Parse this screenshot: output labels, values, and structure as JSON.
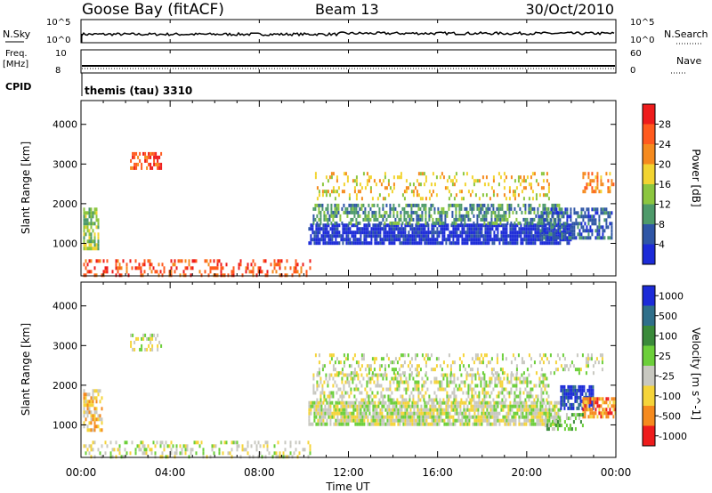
{
  "header": {
    "title": "Goose Bay (fitACF)",
    "beam": "Beam 13",
    "date": "30/Oct/2010"
  },
  "strips": {
    "nsky_label": "N.Sky",
    "nsearch_label": "N.Search",
    "nsky_ticks": [
      "10^5",
      "10^0"
    ],
    "freq_label_1": "Freq.",
    "freq_label_2": "[MHz]",
    "freq_ticks": [
      "10",
      "8"
    ],
    "nave_label": "Nave",
    "nave_ticks": [
      "60",
      "0"
    ],
    "cpid_label": "CPID",
    "cpid_text": "themis (tau) 3310"
  },
  "x_axis": {
    "label": "Time UT",
    "ticks": [
      "00:00",
      "04:00",
      "08:00",
      "12:00",
      "16:00",
      "20:00",
      "00:00"
    ],
    "tick_hours": [
      0,
      4,
      8,
      12,
      16,
      20,
      24
    ],
    "range_hours": [
      0,
      24
    ]
  },
  "chart_data": [
    {
      "type": "heatmap",
      "name": "power",
      "ylabel": "Slant Range [km]",
      "yticks": [
        1000,
        2000,
        3000,
        4000
      ],
      "ylim": [
        180,
        4600
      ],
      "xlim_hours": [
        0,
        24
      ],
      "colorbar_label": "Power [dB]",
      "colorbar_ticks": [
        "28",
        "24",
        "20",
        "16",
        "12",
        "8",
        "4"
      ],
      "colorbar_colors": [
        "#ee1c1c",
        "#ff5a1e",
        "#f58a1e",
        "#f2d431",
        "#8cc63f",
        "#4e9a6a",
        "#2f56a6",
        "#1c2bd8"
      ],
      "regions": [
        {
          "t0": 0.1,
          "t1": 10.3,
          "r0": 200,
          "r1": 600,
          "level": 1,
          "density": 0.35
        },
        {
          "t0": 0.1,
          "t1": 0.8,
          "r0": 900,
          "r1": 1900,
          "level": 4,
          "density": 0.7
        },
        {
          "t0": 2.2,
          "t1": 3.6,
          "r0": 2900,
          "r1": 3300,
          "level": 1,
          "density": 0.6
        },
        {
          "t0": 10.2,
          "t1": 22.0,
          "r0": 1050,
          "r1": 1500,
          "level": 7,
          "density": 0.85
        },
        {
          "t0": 10.4,
          "t1": 21.5,
          "r0": 1500,
          "r1": 2000,
          "level": 5,
          "density": 0.55
        },
        {
          "t0": 10.5,
          "t1": 21.0,
          "r0": 2100,
          "r1": 2800,
          "level": 3,
          "density": 0.25
        },
        {
          "t0": 20.5,
          "t1": 23.8,
          "r0": 1100,
          "r1": 1900,
          "level": 6,
          "density": 0.6
        },
        {
          "t0": 22.5,
          "t1": 24.0,
          "r0": 2300,
          "r1": 2800,
          "level": 2,
          "density": 0.4
        }
      ]
    },
    {
      "type": "heatmap",
      "name": "velocity",
      "ylabel": "Slant Range [km]",
      "yticks": [
        1000,
        2000,
        3000,
        4000
      ],
      "ylim": [
        180,
        4600
      ],
      "xlim_hours": [
        0,
        24
      ],
      "colorbar_label": "Velocity [m s^-1]",
      "colorbar_ticks": [
        "1000",
        "500",
        "100",
        "25",
        "-25",
        "-100",
        "-500",
        "-1000"
      ],
      "colorbar_colors": [
        "#1c2bd8",
        "#2f6f8a",
        "#3a8a3a",
        "#6ccf3a",
        "#c8c8c0",
        "#f5d43a",
        "#f58a1e",
        "#ee1c1c"
      ],
      "regions": [
        {
          "t0": 0.1,
          "t1": 10.3,
          "r0": 200,
          "r1": 600,
          "level": 4,
          "density": 0.3
        },
        {
          "t0": 0.1,
          "t1": 0.9,
          "r0": 900,
          "r1": 1900,
          "level": 5,
          "density": 0.6
        },
        {
          "t0": 2.2,
          "t1": 3.6,
          "r0": 2900,
          "r1": 3300,
          "level": 4,
          "density": 0.5
        },
        {
          "t0": 10.2,
          "t1": 21.5,
          "r0": 1050,
          "r1": 1600,
          "level": 4,
          "density": 0.85
        },
        {
          "t0": 10.4,
          "t1": 21.0,
          "r0": 1600,
          "r1": 2300,
          "level": 4,
          "density": 0.45
        },
        {
          "t0": 10.5,
          "t1": 23.5,
          "r0": 2300,
          "r1": 2800,
          "level": 4,
          "density": 0.25
        },
        {
          "t0": 21.5,
          "t1": 23.0,
          "r0": 1400,
          "r1": 2000,
          "level": 0,
          "density": 0.7
        },
        {
          "t0": 22.5,
          "t1": 24.0,
          "r0": 1200,
          "r1": 1700,
          "level": 6,
          "density": 0.7
        },
        {
          "t0": 20.8,
          "t1": 22.5,
          "r0": 900,
          "r1": 1300,
          "level": 3,
          "density": 0.5
        }
      ]
    }
  ]
}
